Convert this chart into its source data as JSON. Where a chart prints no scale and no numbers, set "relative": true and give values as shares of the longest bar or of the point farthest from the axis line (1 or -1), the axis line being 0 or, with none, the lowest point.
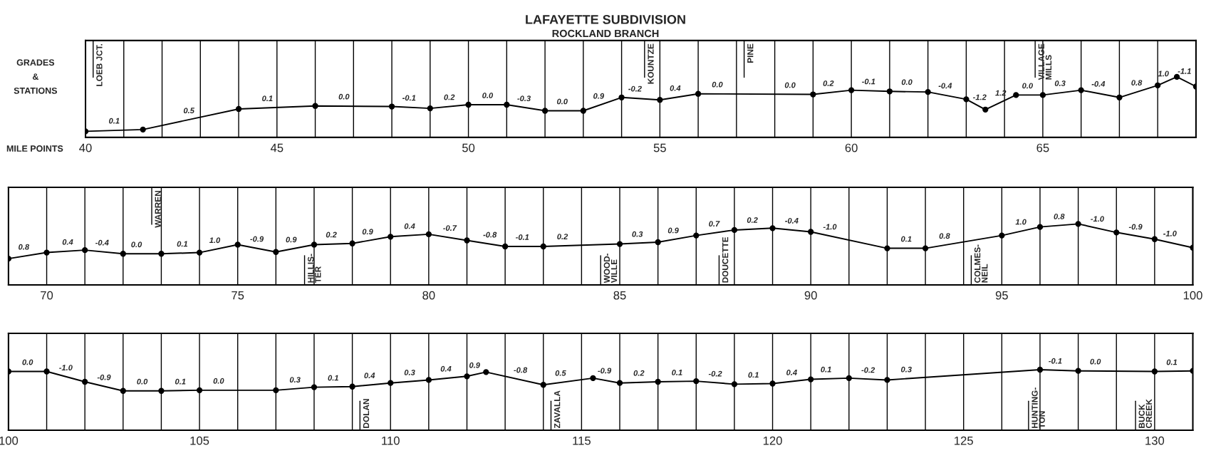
{
  "chart_data": [
    {
      "type": "line",
      "title": "LAFAYETTE SUBDIVISION",
      "subtitle": "ROCKLAND BRANCH",
      "ylabel": "GRADES & STATIONS",
      "xlabel": "MILE POINTS",
      "relative": true,
      "marker": "circle",
      "line_style": "solid",
      "grid": "x",
      "color": "#000000",
      "x": [
        40,
        41.5,
        44,
        46,
        48,
        49,
        50,
        51,
        52,
        53,
        54,
        55,
        56,
        59,
        60,
        61,
        62,
        63,
        63.5,
        64.3,
        65,
        66,
        67,
        68,
        68.5,
        69
      ],
      "values": [
        0.1,
        0.13,
        0.47,
        0.52,
        0.51,
        0.48,
        0.54,
        0.54,
        0.44,
        0.44,
        0.66,
        0.62,
        0.72,
        0.71,
        0.78,
        0.76,
        0.75,
        0.63,
        0.46,
        0.7,
        0.7,
        0.78,
        0.66,
        0.86,
        1.0,
        0.84
      ],
      "xlim": [
        40,
        69
      ],
      "ref_lines": [
        {
          "axis": "x",
          "value": 40.2,
          "label": "LOEB JCT."
        },
        {
          "axis": "x",
          "value": 54.6,
          "label": "KOUNTZE"
        },
        {
          "axis": "x",
          "value": 57.2,
          "label": "PINE"
        },
        {
          "axis": "x",
          "value": 64.8,
          "label": "VILLAGE\nMILLS"
        }
      ],
      "xticks": [
        40,
        {
          "value": 41,
          "label": null
        },
        {
          "value": 42,
          "label": null
        },
        {
          "value": 43,
          "label": null
        },
        {
          "value": 44,
          "label": null
        },
        45,
        {
          "value": 46,
          "label": null
        },
        {
          "value": 47,
          "label": null
        },
        {
          "value": 48,
          "label": null
        },
        {
          "value": 49,
          "label": null
        },
        50,
        {
          "value": 51,
          "label": null
        },
        {
          "value": 52,
          "label": null
        },
        {
          "value": 53,
          "label": null
        },
        {
          "value": 54,
          "label": null
        },
        55,
        {
          "value": 56,
          "label": null
        },
        {
          "value": 57,
          "label": null
        },
        {
          "value": 58,
          "label": null
        },
        {
          "value": 59,
          "label": null
        },
        60,
        {
          "value": 61,
          "label": null
        },
        {
          "value": 62,
          "label": null
        },
        {
          "value": 63,
          "label": null
        },
        {
          "value": 64,
          "label": null
        },
        65,
        {
          "value": 66,
          "label": null
        },
        {
          "value": 67,
          "label": null
        },
        {
          "value": 68,
          "label": null
        }
      ],
      "annotations": [
        {
          "text": "0.1",
          "x": 40.75,
          "y": 0.12
        },
        {
          "text": "0.5",
          "x": 42.7,
          "y": 0.29
        },
        {
          "text": "0.1",
          "x": 44.75,
          "y": 0.49
        },
        {
          "text": "0.0",
          "x": 46.75,
          "y": 0.52
        },
        {
          "text": "-0.1",
          "x": 48.45,
          "y": 0.5
        },
        {
          "text": "0.2",
          "x": 49.5,
          "y": 0.51
        },
        {
          "text": "0.0",
          "x": 50.5,
          "y": 0.54
        },
        {
          "text": "-0.3",
          "x": 51.45,
          "y": 0.49
        },
        {
          "text": "0.0",
          "x": 52.45,
          "y": 0.44
        },
        {
          "text": "0.9",
          "x": 53.4,
          "y": 0.53
        },
        {
          "text": "-0.2",
          "x": 54.35,
          "y": 0.65
        },
        {
          "text": "0.4",
          "x": 55.4,
          "y": 0.66
        },
        {
          "text": "0.0",
          "x": 56.5,
          "y": 0.72
        },
        {
          "text": "0.0",
          "x": 58.4,
          "y": 0.71
        },
        {
          "text": "0.2",
          "x": 59.4,
          "y": 0.74
        },
        {
          "text": "-0.1",
          "x": 60.45,
          "y": 0.77
        },
        {
          "text": "0.0",
          "x": 61.45,
          "y": 0.76
        },
        {
          "text": "-0.4",
          "x": 62.45,
          "y": 0.7
        },
        {
          "text": "-1.2",
          "x": 63.35,
          "y": 0.51
        },
        {
          "text": "1.2",
          "x": 63.9,
          "y": 0.58
        },
        {
          "text": "0.0",
          "x": 64.6,
          "y": 0.7
        },
        {
          "text": "0.3",
          "x": 65.45,
          "y": 0.74
        },
        {
          "text": "-0.4",
          "x": 66.45,
          "y": 0.73
        },
        {
          "text": "0.8",
          "x": 67.45,
          "y": 0.75
        },
        {
          "text": "1.0",
          "x": 68.15,
          "y": 0.9
        },
        {
          "text": "-1.1",
          "x": 68.7,
          "y": 0.94
        }
      ]
    },
    {
      "type": "line",
      "relative": true,
      "marker": "circle",
      "line_style": "solid",
      "grid": "x",
      "color": "#000000",
      "x": [
        69,
        70,
        71,
        72,
        73,
        74,
        75,
        76,
        77,
        78,
        79,
        80,
        81,
        82,
        83,
        85,
        86,
        87,
        88,
        89,
        90,
        92,
        93,
        95,
        96,
        97,
        98,
        99,
        100
      ],
      "values": [
        0.43,
        0.53,
        0.57,
        0.51,
        0.51,
        0.53,
        0.66,
        0.54,
        0.66,
        0.68,
        0.79,
        0.83,
        0.73,
        0.63,
        0.63,
        0.67,
        0.7,
        0.81,
        0.9,
        0.93,
        0.87,
        0.6,
        0.6,
        0.81,
        0.95,
        1.0,
        0.86,
        0.75,
        0.61
      ],
      "xlim": [
        69,
        100
      ],
      "ref_lines": [
        {
          "axis": "x",
          "value": 72.75,
          "label": "WARREN"
        },
        {
          "axis": "x",
          "value": 76.75,
          "label": "HILLIS-\nTER"
        },
        {
          "axis": "x",
          "value": 84.5,
          "label": "WOOD-\nVILLE"
        },
        {
          "axis": "x",
          "value": 87.6,
          "label": "DOUCETTE"
        },
        {
          "axis": "x",
          "value": 94.2,
          "label": "COLMES-\nNEIL"
        }
      ],
      "xticks": [
        70,
        {
          "value": 71,
          "label": null
        },
        {
          "value": 72,
          "label": null
        },
        {
          "value": 73,
          "label": null
        },
        {
          "value": 74,
          "label": null
        },
        75,
        {
          "value": 76,
          "label": null
        },
        {
          "value": 77,
          "label": null
        },
        {
          "value": 78,
          "label": null
        },
        {
          "value": 79,
          "label": null
        },
        80,
        {
          "value": 81,
          "label": null
        },
        {
          "value": 82,
          "label": null
        },
        {
          "value": 83,
          "label": null
        },
        {
          "value": 84,
          "label": null
        },
        85,
        {
          "value": 86,
          "label": null
        },
        {
          "value": 87,
          "label": null
        },
        {
          "value": 88,
          "label": null
        },
        {
          "value": 89,
          "label": null
        },
        90,
        {
          "value": 91,
          "label": null
        },
        {
          "value": 92,
          "label": null
        },
        {
          "value": 93,
          "label": null
        },
        {
          "value": 94,
          "label": null
        },
        95,
        {
          "value": 96,
          "label": null
        },
        {
          "value": 97,
          "label": null
        },
        {
          "value": 98,
          "label": null
        },
        {
          "value": 99,
          "label": null
        },
        100
      ],
      "annotations": [
        {
          "text": "0.8",
          "x": 69.4,
          "y": 0.47
        },
        {
          "text": "0.4",
          "x": 70.55,
          "y": 0.55
        },
        {
          "text": "-0.4",
          "x": 71.45,
          "y": 0.54
        },
        {
          "text": "0.0",
          "x": 72.35,
          "y": 0.51
        },
        {
          "text": "0.1",
          "x": 73.55,
          "y": 0.52
        },
        {
          "text": "1.0",
          "x": 74.4,
          "y": 0.58
        },
        {
          "text": "-0.9",
          "x": 75.5,
          "y": 0.6
        },
        {
          "text": "0.9",
          "x": 76.4,
          "y": 0.59
        },
        {
          "text": "0.2",
          "x": 77.45,
          "y": 0.67
        },
        {
          "text": "0.9",
          "x": 78.4,
          "y": 0.72
        },
        {
          "text": "0.4",
          "x": 79.5,
          "y": 0.81
        },
        {
          "text": "-0.7",
          "x": 80.55,
          "y": 0.78
        },
        {
          "text": "-0.8",
          "x": 81.6,
          "y": 0.67
        },
        {
          "text": "-0.1",
          "x": 82.45,
          "y": 0.63
        },
        {
          "text": "0.2",
          "x": 83.5,
          "y": 0.64
        },
        {
          "text": "0.3",
          "x": 85.46,
          "y": 0.68
        },
        {
          "text": "0.9",
          "x": 86.4,
          "y": 0.74
        },
        {
          "text": "0.7",
          "x": 87.47,
          "y": 0.85
        },
        {
          "text": "0.2",
          "x": 88.47,
          "y": 0.91
        },
        {
          "text": "-0.4",
          "x": 89.5,
          "y": 0.9
        },
        {
          "text": "-1.0",
          "x": 90.5,
          "y": 0.8
        },
        {
          "text": "0.1",
          "x": 92.5,
          "y": 0.6
        },
        {
          "text": "0.8",
          "x": 93.5,
          "y": 0.65
        },
        {
          "text": "1.0",
          "x": 95.5,
          "y": 0.88
        },
        {
          "text": "0.8",
          "x": 96.5,
          "y": 0.97
        },
        {
          "text": "-1.0",
          "x": 97.5,
          "y": 0.93
        },
        {
          "text": "-0.9",
          "x": 98.5,
          "y": 0.8
        },
        {
          "text": "-1.0",
          "x": 99.4,
          "y": 0.69
        }
      ]
    },
    {
      "type": "line",
      "relative": true,
      "marker": "circle",
      "line_style": "solid",
      "grid": "x",
      "color": "#000000",
      "x": [
        100,
        101,
        102,
        103,
        104,
        105,
        107,
        108,
        109,
        110,
        111,
        112,
        112.5,
        114,
        115.3,
        116,
        117,
        118,
        119,
        120,
        121,
        122,
        123,
        127,
        128,
        130,
        131
      ],
      "values": [
        0.97,
        0.97,
        0.8,
        0.65,
        0.65,
        0.66,
        0.66,
        0.71,
        0.72,
        0.78,
        0.83,
        0.89,
        0.96,
        0.75,
        0.86,
        0.78,
        0.8,
        0.81,
        0.76,
        0.77,
        0.84,
        0.86,
        0.83,
        1.0,
        0.98,
        0.97,
        0.98
      ],
      "xlim": [
        100,
        131
      ],
      "ref_lines": [
        {
          "axis": "x",
          "value": 109.2,
          "label": "DOLAN"
        },
        {
          "axis": "x",
          "value": 114.2,
          "label": "ZAVALLA"
        },
        {
          "axis": "x",
          "value": 126.7,
          "label": "HUNTING-\nTON"
        },
        {
          "axis": "x",
          "value": 129.5,
          "label": "BUCK\nCREEK"
        }
      ],
      "xticks": [
        100,
        {
          "value": 101,
          "label": null
        },
        {
          "value": 102,
          "label": null
        },
        {
          "value": 103,
          "label": null
        },
        {
          "value": 104,
          "label": null
        },
        105,
        {
          "value": 106,
          "label": null
        },
        {
          "value": 107,
          "label": null
        },
        {
          "value": 108,
          "label": null
        },
        {
          "value": 109,
          "label": null
        },
        110,
        {
          "value": 111,
          "label": null
        },
        {
          "value": 112,
          "label": null
        },
        {
          "value": 113,
          "label": null
        },
        {
          "value": 114,
          "label": null
        },
        115,
        {
          "value": 116,
          "label": null
        },
        {
          "value": 117,
          "label": null
        },
        {
          "value": 118,
          "label": null
        },
        {
          "value": 119,
          "label": null
        },
        120,
        {
          "value": 121,
          "label": null
        },
        {
          "value": 122,
          "label": null
        },
        {
          "value": 123,
          "label": null
        },
        {
          "value": 124,
          "label": null
        },
        125,
        {
          "value": 126,
          "label": null
        },
        {
          "value": 127,
          "label": null
        },
        {
          "value": 128,
          "label": null
        },
        {
          "value": 129,
          "label": null
        },
        130
      ],
      "annotations": [
        {
          "text": "0.0",
          "x": 100.5,
          "y": 0.97
        },
        {
          "text": "-1.0",
          "x": 101.5,
          "y": 0.88
        },
        {
          "text": "-0.9",
          "x": 102.5,
          "y": 0.72
        },
        {
          "text": "0.0",
          "x": 103.5,
          "y": 0.65
        },
        {
          "text": "0.1",
          "x": 104.5,
          "y": 0.65
        },
        {
          "text": "0.0",
          "x": 105.5,
          "y": 0.66
        },
        {
          "text": "0.3",
          "x": 107.5,
          "y": 0.68
        },
        {
          "text": "0.1",
          "x": 108.5,
          "y": 0.71
        },
        {
          "text": "0.4",
          "x": 109.45,
          "y": 0.75
        },
        {
          "text": "0.3",
          "x": 110.5,
          "y": 0.8
        },
        {
          "text": "0.4",
          "x": 111.45,
          "y": 0.86
        },
        {
          "text": "0.9",
          "x": 112.2,
          "y": 0.92
        },
        {
          "text": "-0.8",
          "x": 113.4,
          "y": 0.84
        },
        {
          "text": "0.5",
          "x": 114.45,
          "y": 0.79
        },
        {
          "text": "-0.9",
          "x": 115.6,
          "y": 0.83
        },
        {
          "text": "0.2",
          "x": 116.5,
          "y": 0.79
        },
        {
          "text": "0.1",
          "x": 117.5,
          "y": 0.8
        },
        {
          "text": "-0.2",
          "x": 118.5,
          "y": 0.78
        },
        {
          "text": "0.1",
          "x": 119.5,
          "y": 0.76
        },
        {
          "text": "0.4",
          "x": 120.5,
          "y": 0.8
        },
        {
          "text": "0.1",
          "x": 121.4,
          "y": 0.85
        },
        {
          "text": "-0.2",
          "x": 122.5,
          "y": 0.84
        },
        {
          "text": "0.3",
          "x": 123.5,
          "y": 0.85
        },
        {
          "text": "-0.1",
          "x": 127.4,
          "y": 0.99
        },
        {
          "text": "0.0",
          "x": 128.45,
          "y": 0.98
        },
        {
          "text": "0.1",
          "x": 130.45,
          "y": 0.97
        }
      ]
    }
  ]
}
